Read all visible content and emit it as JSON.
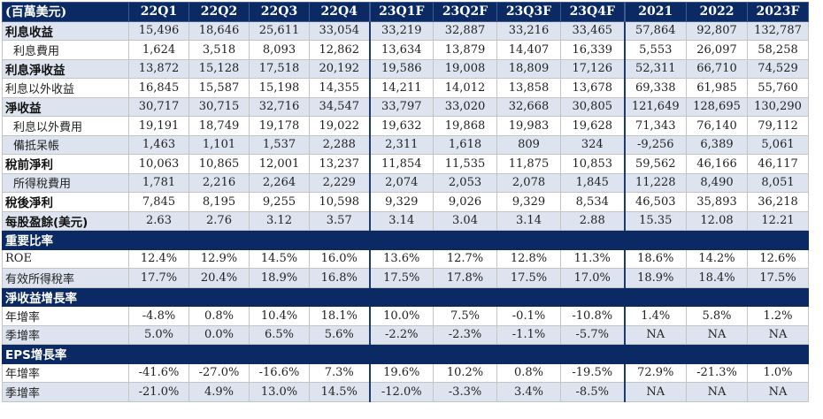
{
  "table": {
    "header": [
      "(百萬美元)",
      "22Q1",
      "22Q2",
      "22Q3",
      "22Q4",
      "23Q1F",
      "23Q2F",
      "23Q3F",
      "23Q4F",
      "2021",
      "2022",
      "2023F"
    ],
    "rows": [
      {
        "label": "利息收益",
        "values": [
          "15,496",
          "18,646",
          "25,611",
          "33,054",
          "33,219",
          "32,887",
          "33,216",
          "33,465",
          "57,864",
          "92,807",
          "132,787"
        ]
      },
      {
        "label": "利息費用",
        "values": [
          "1,624",
          "3,518",
          "8,093",
          "12,862",
          "13,634",
          "13,879",
          "14,407",
          "16,339",
          "5,553",
          "26,097",
          "58,258"
        ]
      },
      {
        "label": "利息淨收益",
        "values": [
          "13,872",
          "15,128",
          "17,518",
          "20,192",
          "19,586",
          "19,008",
          "18,809",
          "17,126",
          "52,311",
          "66,710",
          "74,529"
        ]
      },
      {
        "label": "利息以外收益",
        "values": [
          "16,845",
          "15,587",
          "15,198",
          "14,355",
          "14,211",
          "14,012",
          "13,858",
          "13,678",
          "69,338",
          "61,985",
          "55,760"
        ]
      },
      {
        "label": "淨收益",
        "values": [
          "30,717",
          "30,715",
          "32,716",
          "34,547",
          "33,797",
          "33,020",
          "32,668",
          "30,805",
          "121,649",
          "128,695",
          "130,290"
        ]
      },
      {
        "label": "利息以外費用",
        "values": [
          "19,191",
          "18,749",
          "19,178",
          "19,022",
          "19,632",
          "19,868",
          "19,983",
          "19,628",
          "71,343",
          "76,140",
          "79,112"
        ]
      },
      {
        "label": "備抵呆帳",
        "values": [
          "1,463",
          "1,101",
          "1,537",
          "2,288",
          "2,311",
          "1,618",
          "809",
          "324",
          "-9,256",
          "6,389",
          "5,061"
        ]
      },
      {
        "label": "稅前淨利",
        "values": [
          "10,063",
          "10,865",
          "12,001",
          "13,237",
          "11,854",
          "11,535",
          "11,875",
          "10,853",
          "59,562",
          "46,166",
          "46,117"
        ]
      },
      {
        "label": "所得稅費用",
        "values": [
          "1,781",
          "2,216",
          "2,264",
          "2,229",
          "2,074",
          "2,053",
          "2,078",
          "1,845",
          "11,228",
          "8,490",
          "8,051"
        ]
      },
      {
        "label": "稅後淨利",
        "values": [
          "7,845",
          "8,195",
          "9,255",
          "10,598",
          "9,329",
          "9,026",
          "9,329",
          "8,534",
          "46,503",
          "35,893",
          "36,218"
        ]
      },
      {
        "label": "每股盈餘(美元)",
        "values": [
          "2.63",
          "2.76",
          "3.12",
          "3.57",
          "3.14",
          "3.04",
          "3.14",
          "2.88",
          "15.35",
          "12.08",
          "12.21"
        ]
      }
    ],
    "section1": {
      "title": "重要比率",
      "rows": [
        {
          "label": "ROE",
          "values": [
            "12.4%",
            "12.9%",
            "14.5%",
            "16.0%",
            "13.6%",
            "12.7%",
            "12.8%",
            "11.3%",
            "18.6%",
            "14.2%",
            "12.6%"
          ]
        },
        {
          "label": "有效所得稅率",
          "values": [
            "17.7%",
            "20.4%",
            "18.9%",
            "16.8%",
            "17.5%",
            "17.8%",
            "17.5%",
            "17.0%",
            "18.9%",
            "18.4%",
            "17.5%"
          ]
        }
      ]
    },
    "section2": {
      "title": "淨收益增長率",
      "rows": [
        {
          "label": "年增率",
          "values": [
            "-4.8%",
            "0.8%",
            "10.4%",
            "18.1%",
            "10.0%",
            "7.5%",
            "-0.1%",
            "-10.8%",
            "1.4%",
            "5.8%",
            "1.2%"
          ]
        },
        {
          "label": "季增率",
          "values": [
            "5.0%",
            "0.0%",
            "6.5%",
            "5.6%",
            "-2.2%",
            "-2.3%",
            "-1.1%",
            "-5.7%",
            "NA",
            "NA",
            "NA"
          ]
        }
      ]
    },
    "section3": {
      "title": "EPS增長率",
      "rows": [
        {
          "label": "年增率",
          "values": [
            "-41.6%",
            "-27.0%",
            "-16.6%",
            "7.3%",
            "19.6%",
            "10.2%",
            "0.8%",
            "-19.5%",
            "72.9%",
            "-21.3%",
            "1.0%"
          ]
        },
        {
          "label": "季增率",
          "values": [
            "-21.0%",
            "4.9%",
            "13.0%",
            "14.5%",
            "-12.0%",
            "-3.3%",
            "3.4%",
            "-8.5%",
            "NA",
            "NA",
            "NA"
          ]
        }
      ]
    }
  }
}
